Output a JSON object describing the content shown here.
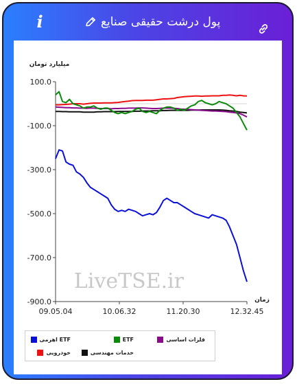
{
  "header": {
    "title": "پول درشت حقیقی صنایع"
  },
  "icons": {
    "info": "info-icon",
    "edit": "pencil-icon",
    "link": "link-icon"
  },
  "watermark": "LiveTSE.ir",
  "chart_data": {
    "type": "line",
    "ylabel": "میلیارد تومان",
    "xlabel": "زمان",
    "ylim": [
      -900,
      100
    ],
    "yticks": [
      "100.0",
      "-100.0",
      "-300.0",
      "-500.0",
      "-700.0",
      "-900.0"
    ],
    "xticks": [
      "09.05.04",
      "10.06.32",
      "11.20.30",
      "12.32.45"
    ],
    "grid": "horizontal-zero-line",
    "legend_position": "bottom-left",
    "series": [
      {
        "name": "ETF اهرمی",
        "color": "#0a10d8",
        "values": [
          -250,
          -210,
          -215,
          -265,
          -275,
          -280,
          -310,
          -320,
          -335,
          -360,
          -380,
          -390,
          -400,
          -410,
          -420,
          -430,
          -460,
          -480,
          -490,
          -485,
          -490,
          -480,
          -485,
          -490,
          -500,
          -510,
          -505,
          -500,
          -505,
          -495,
          -470,
          -440,
          -430,
          -440,
          -450,
          -450,
          -460,
          -470,
          -480,
          -490,
          -500,
          -505,
          -510,
          -515,
          -520,
          -505,
          -510,
          -515,
          -520,
          -530,
          -560,
          -600,
          -640,
          -700,
          -760,
          -810
        ]
      },
      {
        "name": "ETF",
        "color": "#0a8a0a",
        "values": [
          40,
          55,
          10,
          5,
          20,
          0,
          -5,
          -10,
          -20,
          -15,
          -15,
          -10,
          -20,
          -25,
          -20,
          -20,
          -30,
          -40,
          -45,
          -40,
          -45,
          -40,
          -35,
          -25,
          -20,
          -35,
          -40,
          -35,
          -40,
          -45,
          -30,
          -20,
          -15,
          -15,
          -20,
          -30,
          -25,
          -30,
          -20,
          -10,
          -5,
          10,
          15,
          5,
          0,
          -5,
          0,
          10,
          5,
          0,
          -10,
          -20,
          -40,
          -60,
          -90,
          -120
        ]
      },
      {
        "name": "فلزات اساسی",
        "color": "#8a0a8a",
        "values": [
          -15,
          -16,
          -17,
          -18,
          -18,
          -19,
          -19,
          -20,
          -20,
          -21,
          -20,
          -20,
          -21,
          -22,
          -22,
          -22,
          -23,
          -22,
          -22,
          -21,
          -21,
          -20,
          -20,
          -20,
          -19,
          -19,
          -20,
          -21,
          -22,
          -22,
          -21,
          -20,
          -20,
          -20,
          -21,
          -22,
          -24,
          -25,
          -26,
          -27,
          -28,
          -29,
          -30,
          -31,
          -32,
          -33,
          -33,
          -34,
          -35,
          -36,
          -38,
          -40,
          -42,
          -45,
          -52,
          -60
        ]
      },
      {
        "name": "خودرویی",
        "color": "#ee1111",
        "values": [
          -5,
          -5,
          -4,
          -3,
          -2,
          0,
          0,
          0,
          -2,
          0,
          2,
          3,
          3,
          3,
          4,
          4,
          4,
          5,
          6,
          8,
          10,
          12,
          14,
          15,
          15,
          15,
          16,
          16,
          16,
          18,
          20,
          22,
          22,
          23,
          24,
          28,
          30,
          32,
          33,
          34,
          35,
          35,
          34,
          35,
          35,
          36,
          36,
          36,
          38,
          38,
          40,
          38,
          36,
          38,
          36,
          35
        ]
      },
      {
        "name": "خدمات مهندسی",
        "color": "#111111",
        "values": [
          -35,
          -35,
          -36,
          -36,
          -37,
          -37,
          -37,
          -37,
          -38,
          -38,
          -38,
          -38,
          -37,
          -37,
          -36,
          -36,
          -36,
          -36,
          -35,
          -35,
          -35,
          -35,
          -35,
          -34,
          -34,
          -33,
          -33,
          -33,
          -32,
          -32,
          -32,
          -31,
          -31,
          -30,
          -30,
          -30,
          -30,
          -30,
          -30,
          -29,
          -29,
          -29,
          -28,
          -28,
          -28,
          -28,
          -28,
          -28,
          -29,
          -30,
          -32,
          -33,
          -35,
          -38,
          -40,
          -42
        ]
      }
    ]
  }
}
